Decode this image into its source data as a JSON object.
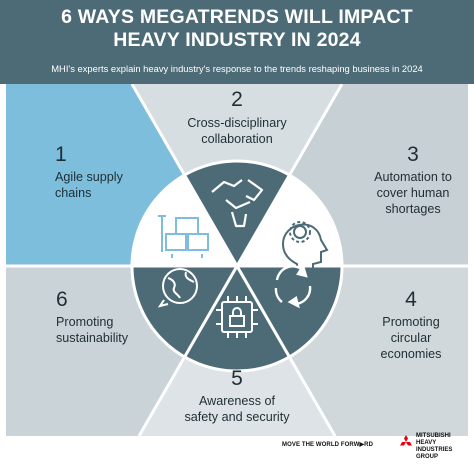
{
  "header": {
    "title_line1": "6 WAYS MEGATRENDS WILL IMPACT",
    "title_line2": "HEAVY INDUSTRY IN 2024",
    "subtitle": "MHI's experts explain heavy industry's response to the trends reshaping business in 2024"
  },
  "trends": [
    {
      "number": "1",
      "line1": "Agile supply",
      "line2": "chains",
      "line3": "",
      "icon": "boxes-icon"
    },
    {
      "number": "2",
      "line1": "Cross-disciplinary",
      "line2": "collaboration",
      "line3": "",
      "icon": "handshake-icon"
    },
    {
      "number": "3",
      "line1": "Automation to",
      "line2": "cover human",
      "line3": "shortages",
      "icon": "head-gear-icon"
    },
    {
      "number": "4",
      "line1": "Promoting",
      "line2": "circular",
      "line3": "economies",
      "icon": "recycle-arrows-icon"
    },
    {
      "number": "5",
      "line1": "Awareness of",
      "line2": "safety and security",
      "line3": "",
      "icon": "chip-lock-icon"
    },
    {
      "number": "6",
      "line1": "Promoting",
      "line2": "sustainability",
      "line3": "",
      "icon": "globe-leaf-icon"
    }
  ],
  "footer": {
    "tagline": "MOVE THE WORLD FORW▶RD",
    "logo_line1": "MITSUBISHI",
    "logo_line2": "HEAVY",
    "logo_line3": "INDUSTRIES",
    "logo_line4": "GROUP"
  },
  "colors": {
    "header": "#4d6b76",
    "highlight_sector": "#7cbedb",
    "sector_light": "#c7d0d4",
    "sector_lighter": "#d7dee1",
    "center_dark": "#4d6b76",
    "logo_red": "#e60012"
  }
}
